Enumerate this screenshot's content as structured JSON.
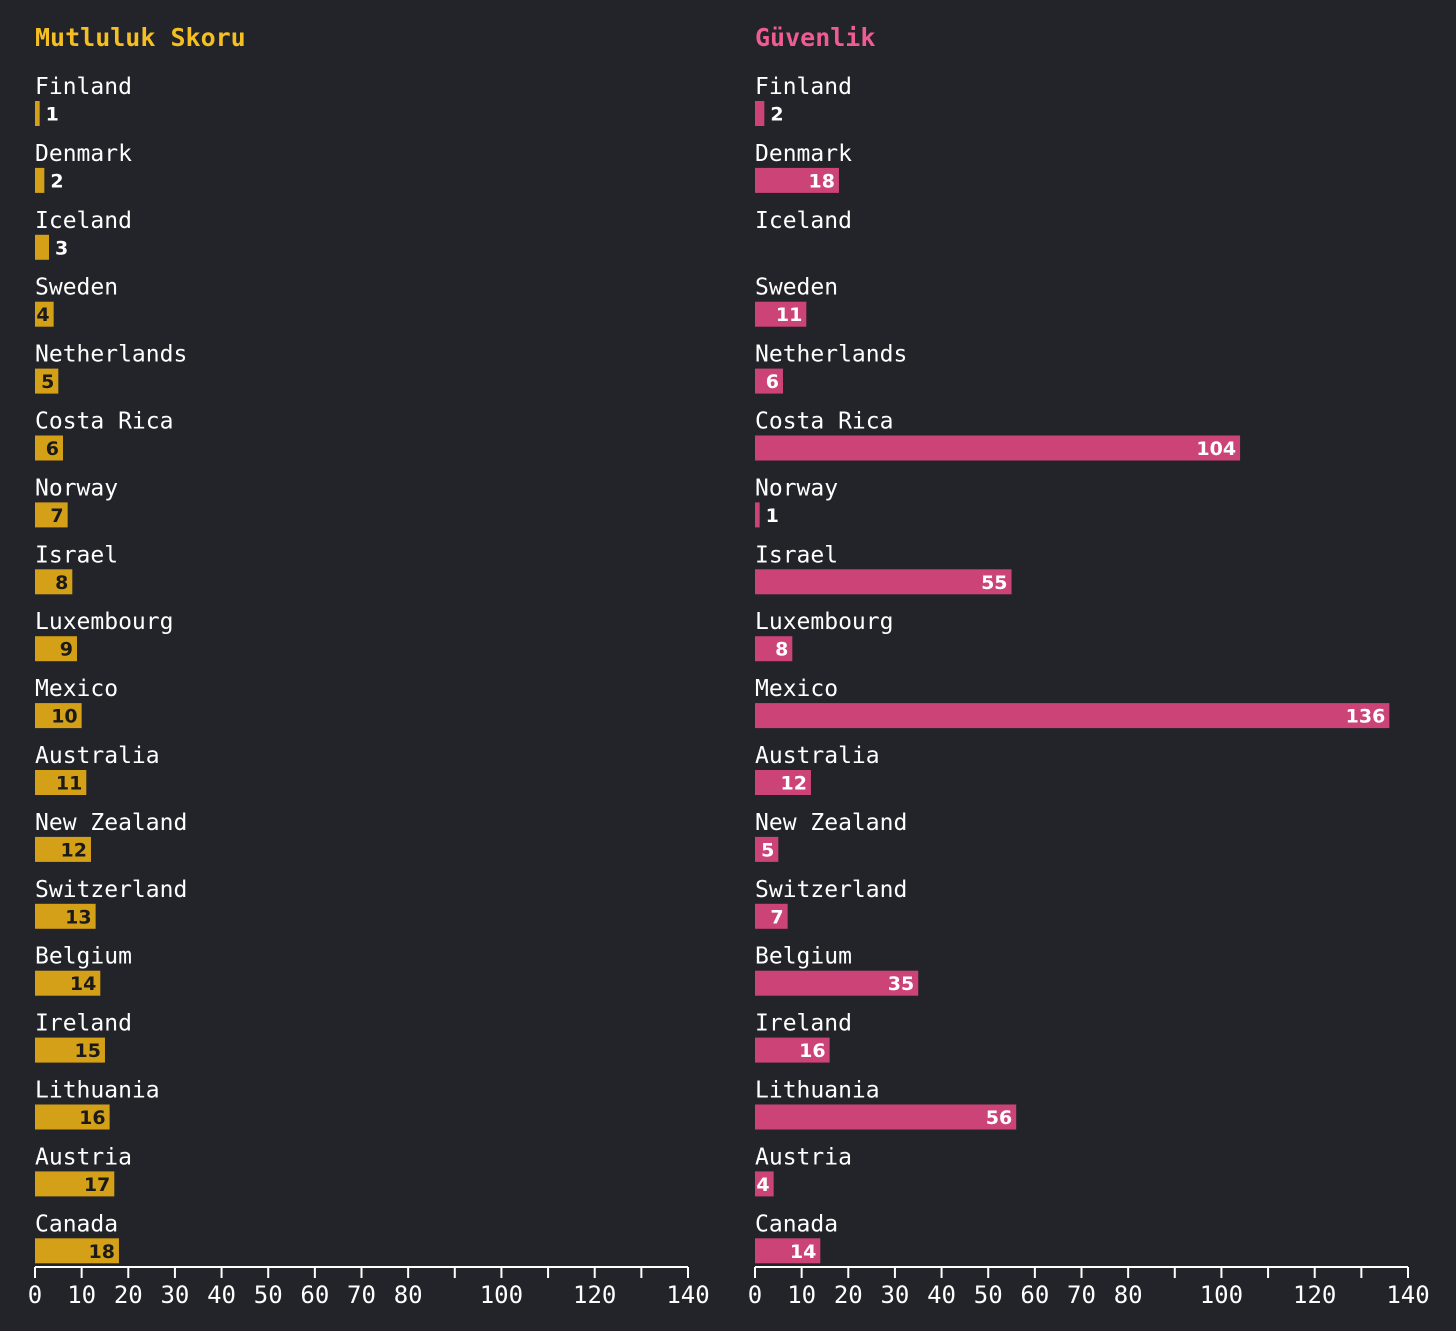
{
  "colors": {
    "background": "#23232a",
    "happiness": "#d4a017",
    "safety": "#cc4477",
    "text": "#ffffff",
    "happiness_title": "#f5bf22",
    "safety_title": "#ee5c92"
  },
  "chart_data": [
    {
      "type": "bar",
      "orientation": "horizontal",
      "title": "Mutluluk Skoru",
      "categories": [
        "Finland",
        "Denmark",
        "Iceland",
        "Sweden",
        "Netherlands",
        "Costa Rica",
        "Norway",
        "Israel",
        "Luxembourg",
        "Mexico",
        "Australia",
        "New Zealand",
        "Switzerland",
        "Belgium",
        "Ireland",
        "Lithuania",
        "Austria",
        "Canada"
      ],
      "values": [
        1,
        2,
        3,
        4,
        5,
        6,
        7,
        8,
        9,
        10,
        11,
        12,
        13,
        14,
        15,
        16,
        17,
        18
      ],
      "xlim": [
        0,
        140
      ],
      "xticks": [
        0,
        10,
        20,
        30,
        40,
        50,
        60,
        70,
        80,
        90,
        100,
        110,
        120,
        130,
        140
      ],
      "xtick_labels": [
        "0",
        "10",
        "20",
        "30",
        "40",
        "50",
        "60",
        "70",
        "80",
        "",
        "100",
        "",
        "120",
        "",
        "140"
      ]
    },
    {
      "type": "bar",
      "orientation": "horizontal",
      "title": "Güvenlik",
      "categories": [
        "Finland",
        "Denmark",
        "Iceland",
        "Sweden",
        "Netherlands",
        "Costa Rica",
        "Norway",
        "Israel",
        "Luxembourg",
        "Mexico",
        "Australia",
        "New Zealand",
        "Switzerland",
        "Belgium",
        "Ireland",
        "Lithuania",
        "Austria",
        "Canada"
      ],
      "values": [
        2,
        18,
        null,
        11,
        6,
        104,
        1,
        55,
        8,
        136,
        12,
        5,
        7,
        35,
        16,
        56,
        4,
        14
      ],
      "xlim": [
        0,
        140
      ],
      "xticks": [
        0,
        10,
        20,
        30,
        40,
        50,
        60,
        70,
        80,
        90,
        100,
        110,
        120,
        130,
        140
      ],
      "xtick_labels": [
        "0",
        "10",
        "20",
        "30",
        "40",
        "50",
        "60",
        "70",
        "80",
        "",
        "100",
        "",
        "120",
        "",
        "140"
      ]
    }
  ]
}
